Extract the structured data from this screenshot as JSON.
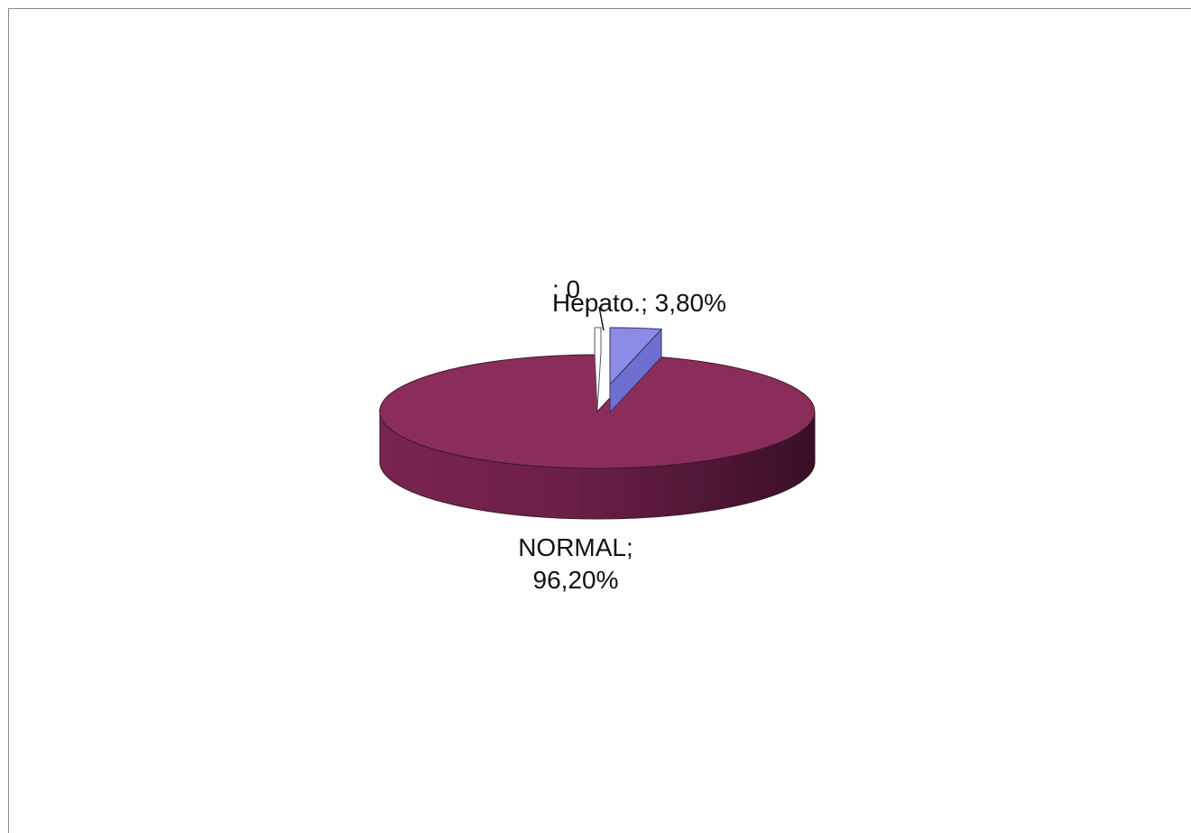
{
  "chart_data": {
    "type": "pie",
    "variant": "3d-exploded",
    "slices": [
      {
        "name": "NORMAL",
        "value": 96.2,
        "label": "NORMAL;",
        "value_label": "96,20%",
        "color": "#8b2d5a"
      },
      {
        "name": "Hepato.",
        "value": 3.8,
        "label": "Hepato.; 3,80%",
        "color": "#8c8ce6"
      },
      {
        "name": "",
        "value": 0,
        "label": "; 0",
        "color": "#ffffff"
      }
    ],
    "legend": "none"
  }
}
